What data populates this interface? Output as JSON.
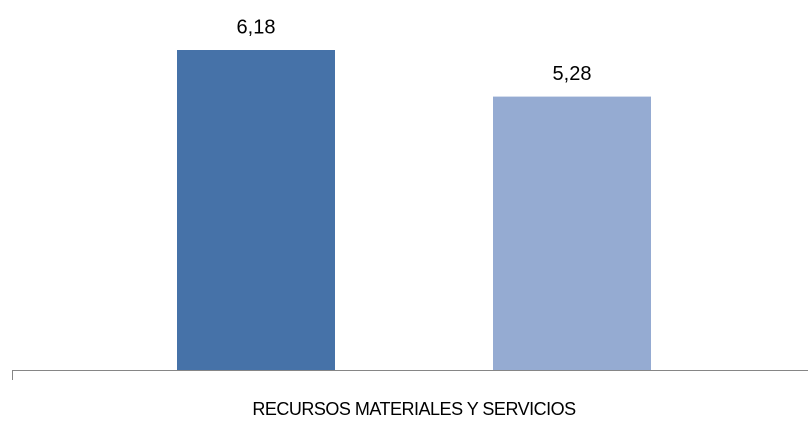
{
  "chart_data": {
    "type": "bar",
    "categories": [
      "RECURSOS MATERIALES Y SERVICIOS"
    ],
    "series": [
      {
        "color": "#4672a8",
        "values": [
          6.18
        ],
        "value_labels": [
          "6,18"
        ]
      },
      {
        "color": "#95abd2",
        "values": [
          5.28
        ],
        "value_labels": [
          "5,28"
        ]
      }
    ]
  }
}
